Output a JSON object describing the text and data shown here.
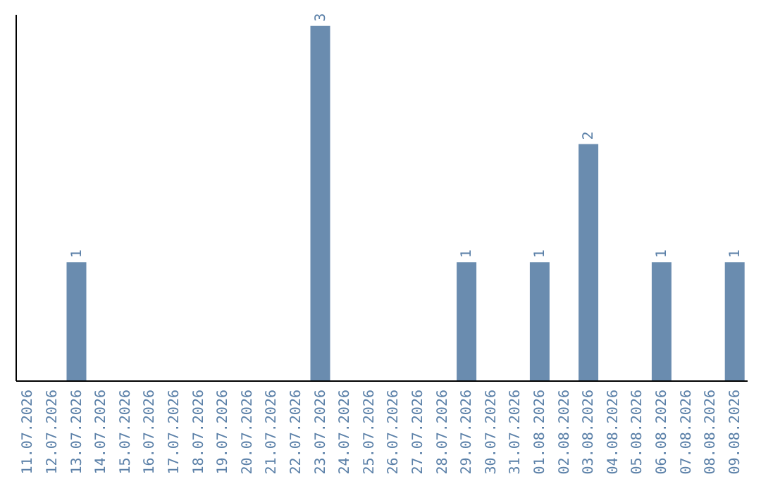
{
  "chart_data": {
    "type": "bar",
    "categories": [
      "11.07.2026",
      "12.07.2026",
      "13.07.2026",
      "14.07.2026",
      "15.07.2026",
      "16.07.2026",
      "17.07.2026",
      "18.07.2026",
      "19.07.2026",
      "20.07.2026",
      "21.07.2026",
      "22.07.2026",
      "23.07.2026",
      "24.07.2026",
      "25.07.2026",
      "26.07.2026",
      "27.07.2026",
      "28.07.2026",
      "29.07.2026",
      "30.07.2026",
      "31.07.2026",
      "01.08.2026",
      "02.08.2026",
      "03.08.2026",
      "04.08.2026",
      "05.08.2026",
      "06.08.2026",
      "07.08.2026",
      "08.08.2026",
      "09.08.2026"
    ],
    "values": [
      0,
      0,
      1,
      0,
      0,
      0,
      0,
      0,
      0,
      0,
      0,
      0,
      3,
      0,
      0,
      0,
      0,
      0,
      1,
      0,
      0,
      1,
      0,
      2,
      0,
      0,
      1,
      0,
      0,
      1
    ],
    "value_labels": [
      null,
      null,
      "1",
      null,
      null,
      null,
      null,
      null,
      null,
      null,
      null,
      null,
      "3",
      null,
      null,
      null,
      null,
      null,
      "1",
      null,
      null,
      "1",
      null,
      "2",
      null,
      null,
      "1",
      null,
      null,
      "1"
    ],
    "color": "#6a8caf",
    "ylim": [
      0,
      3.1
    ],
    "grid": false
  }
}
